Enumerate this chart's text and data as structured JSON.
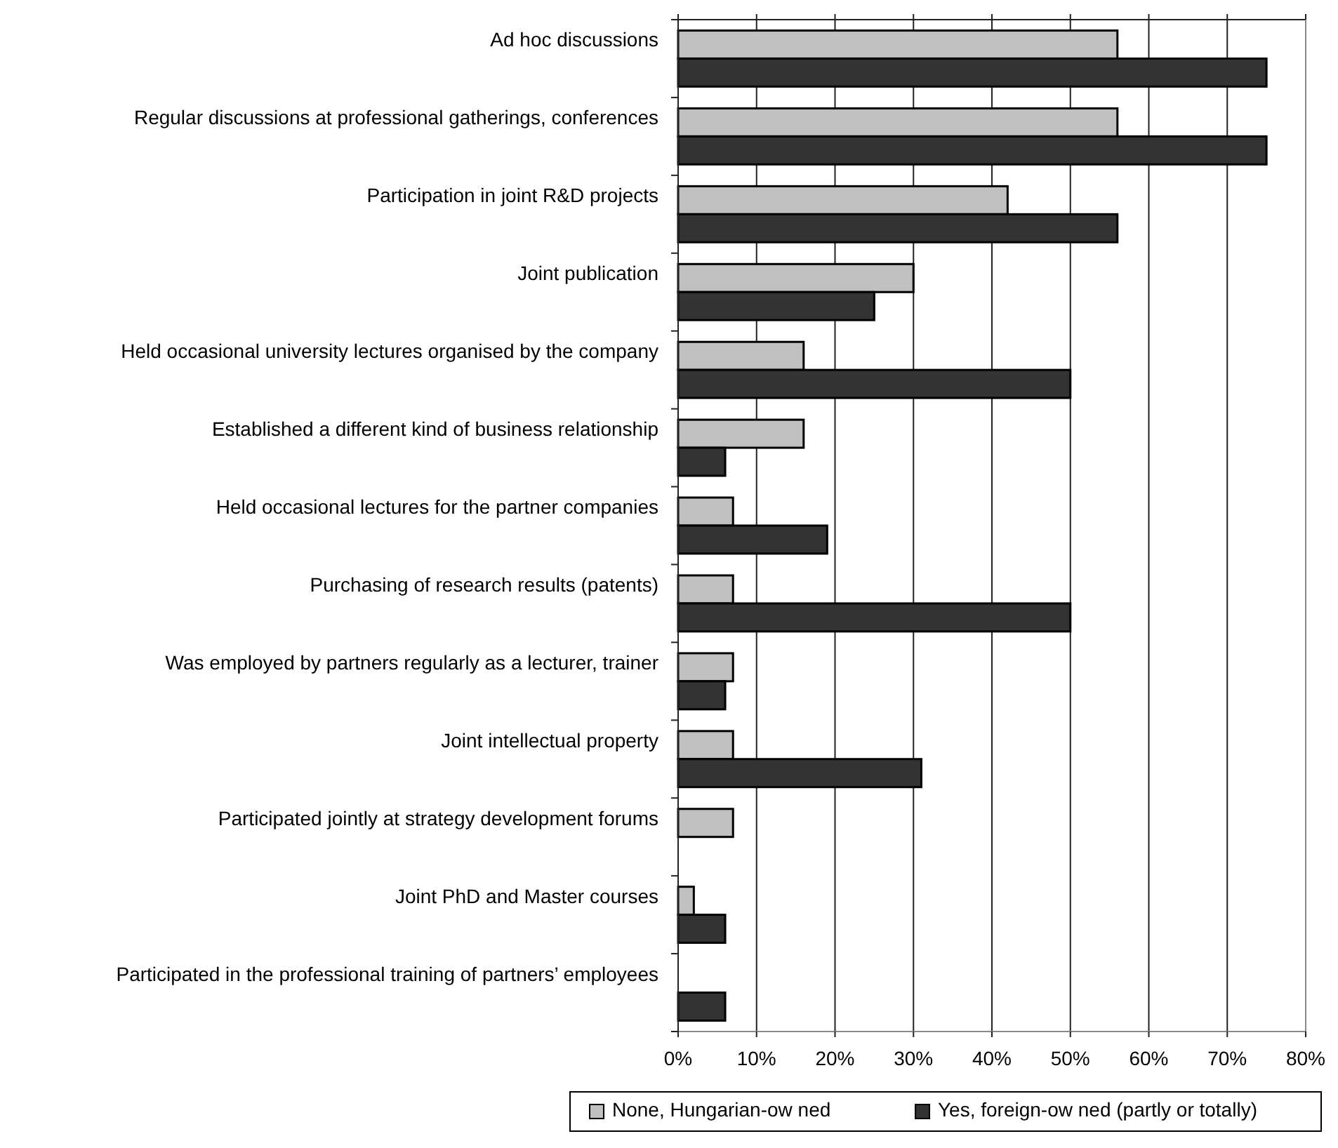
{
  "chart_data": {
    "type": "bar",
    "orientation": "horizontal",
    "categories": [
      "Ad hoc discussions",
      "Regular discussions at professional gatherings, conferences",
      "Participation in joint R&D projects",
      "Joint publication",
      "Held occasional university lectures organised by the company",
      "Established a different kind of business relationship",
      "Held occasional lectures for the partner companies",
      "Purchasing of research results (patents)",
      "Was employed by partners regularly as a lecturer, trainer",
      "Joint intellectual property",
      "Participated jointly at strategy development forums ",
      "Joint PhD and Master courses",
      "Participated in the professional training of partners’ employees"
    ],
    "series": [
      {
        "name": "None, Hungarian-ow ned",
        "color": "#c0c0c0",
        "values": [
          56,
          56,
          42,
          30,
          16,
          16,
          7,
          7,
          7,
          7,
          7,
          2,
          null
        ]
      },
      {
        "name": "Yes, foreign-ow ned (partly or totally)",
        "color": "#333333",
        "values": [
          75,
          75,
          56,
          25,
          50,
          6,
          19,
          50,
          6,
          31,
          null,
          6,
          6
        ]
      }
    ],
    "xlim": [
      0,
      80
    ],
    "xticks": [
      {
        "value": 0,
        "label": "0%"
      },
      {
        "value": 10,
        "label": "10%"
      },
      {
        "value": 20,
        "label": "20%"
      },
      {
        "value": 30,
        "label": "30%"
      },
      {
        "value": 40,
        "label": "40%"
      },
      {
        "value": 50,
        "label": "50%"
      },
      {
        "value": 60,
        "label": "60%"
      },
      {
        "value": 70,
        "label": "70%"
      },
      {
        "value": 80,
        "label": "80%"
      }
    ],
    "grid": "x",
    "legend": "bottom"
  }
}
